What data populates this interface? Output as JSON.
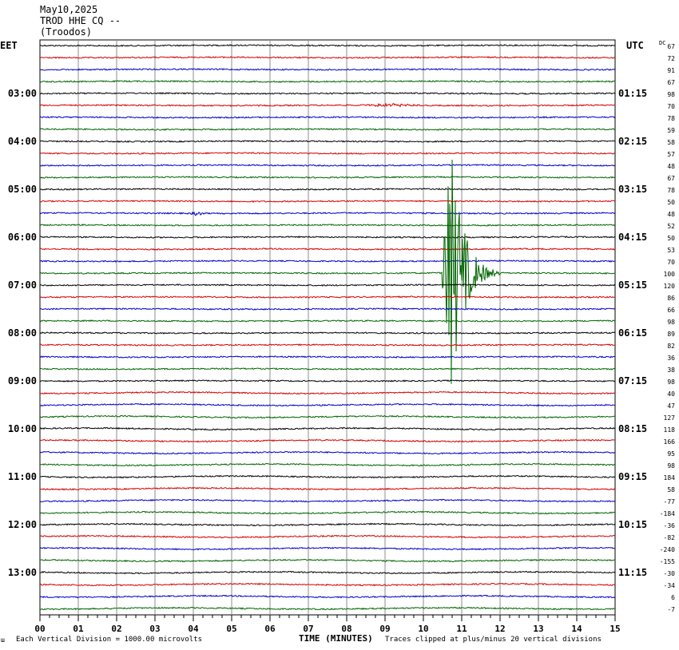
{
  "header": {
    "date": "May10,2025",
    "station": "TROD HHE CQ --",
    "location": "(Troodos)"
  },
  "left_timezone": "EET",
  "right_timezone": "UTC",
  "dc_label": "DC",
  "footer": {
    "vertical_division": "Each Vertical Division = 1000.00 microvolts",
    "clip_note": "Traces clipped at plus/minus 20 vertical divisions",
    "corner_mark": "ɯ"
  },
  "chart_data": {
    "type": "line",
    "xlabel": "TIME (MINUTES)",
    "x_ticks": [
      "00",
      "01",
      "02",
      "03",
      "04",
      "05",
      "06",
      "07",
      "08",
      "09",
      "10",
      "11",
      "12",
      "13",
      "14",
      "15"
    ],
    "xlim": [
      0,
      15
    ],
    "trace_count": 48,
    "trace_interval_minutes": 15,
    "trace_colors": [
      "#000000",
      "#d40000",
      "#0000c8",
      "#006400"
    ],
    "left_hour_labels": [
      "03:00",
      "04:00",
      "05:00",
      "06:00",
      "07:00",
      "08:00",
      "09:00",
      "10:00",
      "11:00",
      "12:00",
      "13:00"
    ],
    "right_hour_labels": [
      "01:15",
      "02:15",
      "03:15",
      "04:15",
      "05:15",
      "06:15",
      "07:15",
      "08:15",
      "09:15",
      "10:15",
      "11:15"
    ],
    "dc_offsets": [
      "67",
      "72",
      "91",
      "67",
      "98",
      "70",
      "78",
      "59",
      "58",
      "57",
      "48",
      "67",
      "78",
      "50",
      "48",
      "52",
      "50",
      "53",
      "70",
      "100",
      "120",
      "86",
      "66",
      "98",
      "89",
      "82",
      "36",
      "38",
      "98",
      "40",
      "47",
      "127",
      "118",
      "166",
      "95",
      "98",
      "184",
      "58",
      "-77",
      "-184",
      "-36",
      "-82",
      "-240",
      "-155",
      "-30",
      "-34",
      "6",
      "-7"
    ],
    "events": [
      {
        "trace": 19,
        "start_min": 10.5,
        "peak_min": 10.75,
        "end_min": 12.0,
        "amplitude_divisions": 20,
        "clipped": true
      },
      {
        "trace": 14,
        "start_min": 3.9,
        "end_min": 4.3,
        "amplitude_divisions": 0.35
      },
      {
        "trace": 5,
        "start_min": 8.3,
        "end_min": 10.0,
        "amplitude_divisions": 0.25
      }
    ]
  }
}
